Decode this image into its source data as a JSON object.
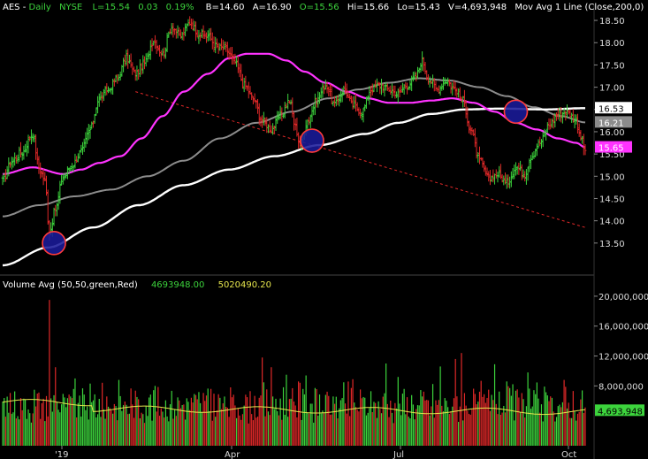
{
  "header": {
    "symbol": "AES",
    "period": "Daily",
    "exchange": "NYSE",
    "last": "L=15.54",
    "change": "0.03",
    "change_pct": "0.19%",
    "bid": "B=14.60",
    "ask": "A=16.90",
    "open": "O=15.56",
    "high": "Hi=15.66",
    "low": "Lo=15.43",
    "volume": "V=4,693,948",
    "study": "Mov Avg 1 Line (Close,200,0)"
  },
  "volume_header": {
    "title": "Volume Avg (50,50,green,Red)",
    "vol_value": "4693948.00",
    "avg_value": "5020490.20"
  },
  "colors": {
    "background": "#000000",
    "up": "#3cd33c",
    "down": "#e02828",
    "ma50": "#ff33ff",
    "ma100": "#8c8c8c",
    "ma200": "#ffffff",
    "trendline": "#e02828",
    "volume_avg": "#e6e64d",
    "circle_fill": "#1a1a9a",
    "circle_stroke": "#ff3b3b",
    "axis_text": "#dcdcdc",
    "header_green": "#3cd33c",
    "header_white": "#ffffff"
  },
  "chart_data": [
    {
      "type": "ohlc",
      "panel": "price",
      "x_ticks": [
        "'19",
        "Apr",
        "Jul",
        "Oct"
      ],
      "ylim": [
        13.0,
        18.7
      ],
      "y_ticks": [
        "18.50",
        "18.00",
        "17.50",
        "17.00",
        "16.50",
        "16.00",
        "15.50",
        "15.00",
        "14.50",
        "14.00",
        "13.50"
      ],
      "price_labels": [
        {
          "label": "16.53",
          "value": 16.53,
          "color": "#ffffff"
        },
        {
          "label": "16.21",
          "value": 16.21,
          "color": "#8c8c8c"
        },
        {
          "label": "15.65",
          "value": 15.65,
          "color": "#ff33ff"
        }
      ],
      "close_anchors": [
        {
          "i": 0,
          "v": 14.9
        },
        {
          "i": 6,
          "v": 15.35
        },
        {
          "i": 13,
          "v": 15.55
        },
        {
          "i": 20,
          "v": 15.95
        },
        {
          "i": 24,
          "v": 15.2
        },
        {
          "i": 28,
          "v": 14.9
        },
        {
          "i": 31,
          "v": 13.75
        },
        {
          "i": 35,
          "v": 14.25
        },
        {
          "i": 40,
          "v": 15.0
        },
        {
          "i": 46,
          "v": 15.25
        },
        {
          "i": 52,
          "v": 15.55
        },
        {
          "i": 58,
          "v": 16.05
        },
        {
          "i": 64,
          "v": 16.75
        },
        {
          "i": 70,
          "v": 16.95
        },
        {
          "i": 76,
          "v": 17.2
        },
        {
          "i": 82,
          "v": 17.65
        },
        {
          "i": 88,
          "v": 17.3
        },
        {
          "i": 94,
          "v": 17.55
        },
        {
          "i": 100,
          "v": 18.05
        },
        {
          "i": 106,
          "v": 17.75
        },
        {
          "i": 112,
          "v": 18.35
        },
        {
          "i": 118,
          "v": 18.15
        },
        {
          "i": 124,
          "v": 18.45
        },
        {
          "i": 130,
          "v": 18.2
        },
        {
          "i": 136,
          "v": 18.15
        },
        {
          "i": 142,
          "v": 17.9
        },
        {
          "i": 148,
          "v": 17.85
        },
        {
          "i": 154,
          "v": 17.55
        },
        {
          "i": 160,
          "v": 17.05
        },
        {
          "i": 166,
          "v": 16.75
        },
        {
          "i": 172,
          "v": 16.25
        },
        {
          "i": 178,
          "v": 16.05
        },
        {
          "i": 184,
          "v": 16.35
        },
        {
          "i": 190,
          "v": 16.7
        },
        {
          "i": 194,
          "v": 16.1
        },
        {
          "i": 197,
          "v": 15.7
        },
        {
          "i": 202,
          "v": 16.25
        },
        {
          "i": 208,
          "v": 16.7
        },
        {
          "i": 214,
          "v": 17.05
        },
        {
          "i": 220,
          "v": 16.6
        },
        {
          "i": 226,
          "v": 16.95
        },
        {
          "i": 232,
          "v": 16.6
        },
        {
          "i": 238,
          "v": 16.45
        },
        {
          "i": 244,
          "v": 16.95
        },
        {
          "i": 250,
          "v": 17.05
        },
        {
          "i": 256,
          "v": 16.95
        },
        {
          "i": 262,
          "v": 16.85
        },
        {
          "i": 268,
          "v": 17.05
        },
        {
          "i": 274,
          "v": 17.25
        },
        {
          "i": 278,
          "v": 17.6
        },
        {
          "i": 282,
          "v": 17.2
        },
        {
          "i": 288,
          "v": 16.95
        },
        {
          "i": 294,
          "v": 17.15
        },
        {
          "i": 300,
          "v": 16.95
        },
        {
          "i": 305,
          "v": 16.7
        },
        {
          "i": 310,
          "v": 16.05
        },
        {
          "i": 316,
          "v": 15.35
        },
        {
          "i": 322,
          "v": 14.95
        },
        {
          "i": 328,
          "v": 15.05
        },
        {
          "i": 334,
          "v": 14.85
        },
        {
          "i": 340,
          "v": 15.2
        },
        {
          "i": 346,
          "v": 15.05
        },
        {
          "i": 350,
          "v": 15.45
        },
        {
          "i": 356,
          "v": 15.75
        },
        {
          "i": 362,
          "v": 16.15
        },
        {
          "i": 368,
          "v": 16.4
        },
        {
          "i": 374,
          "v": 16.45
        },
        {
          "i": 380,
          "v": 16.25
        },
        {
          "i": 383,
          "v": 15.9
        },
        {
          "i": 386,
          "v": 15.55
        }
      ],
      "ma50_anchors": [
        {
          "i": 0,
          "v": 15.05
        },
        {
          "i": 20,
          "v": 15.2
        },
        {
          "i": 40,
          "v": 15.05
        },
        {
          "i": 52,
          "v": 15.15
        },
        {
          "i": 64,
          "v": 15.3
        },
        {
          "i": 78,
          "v": 15.45
        },
        {
          "i": 92,
          "v": 15.85
        },
        {
          "i": 106,
          "v": 16.35
        },
        {
          "i": 120,
          "v": 16.9
        },
        {
          "i": 136,
          "v": 17.3
        },
        {
          "i": 150,
          "v": 17.65
        },
        {
          "i": 162,
          "v": 17.75
        },
        {
          "i": 176,
          "v": 17.75
        },
        {
          "i": 188,
          "v": 17.6
        },
        {
          "i": 200,
          "v": 17.35
        },
        {
          "i": 214,
          "v": 17.1
        },
        {
          "i": 228,
          "v": 16.9
        },
        {
          "i": 242,
          "v": 16.75
        },
        {
          "i": 256,
          "v": 16.65
        },
        {
          "i": 270,
          "v": 16.65
        },
        {
          "i": 284,
          "v": 16.7
        },
        {
          "i": 298,
          "v": 16.75
        },
        {
          "i": 312,
          "v": 16.65
        },
        {
          "i": 326,
          "v": 16.45
        },
        {
          "i": 340,
          "v": 16.2
        },
        {
          "i": 354,
          "v": 16.05
        },
        {
          "i": 368,
          "v": 15.85
        },
        {
          "i": 380,
          "v": 15.75
        },
        {
          "i": 386,
          "v": 15.65
        }
      ],
      "ma100_anchors": [
        {
          "i": 0,
          "v": 14.1
        },
        {
          "i": 24,
          "v": 14.35
        },
        {
          "i": 48,
          "v": 14.55
        },
        {
          "i": 72,
          "v": 14.7
        },
        {
          "i": 96,
          "v": 15.0
        },
        {
          "i": 120,
          "v": 15.35
        },
        {
          "i": 144,
          "v": 15.85
        },
        {
          "i": 168,
          "v": 16.2
        },
        {
          "i": 192,
          "v": 16.45
        },
        {
          "i": 216,
          "v": 16.75
        },
        {
          "i": 236,
          "v": 16.95
        },
        {
          "i": 256,
          "v": 17.1
        },
        {
          "i": 276,
          "v": 17.2
        },
        {
          "i": 296,
          "v": 17.15
        },
        {
          "i": 316,
          "v": 17.0
        },
        {
          "i": 334,
          "v": 16.8
        },
        {
          "i": 352,
          "v": 16.55
        },
        {
          "i": 370,
          "v": 16.35
        },
        {
          "i": 386,
          "v": 16.21
        }
      ],
      "ma200_anchors": [
        {
          "i": 0,
          "v": 13.0
        },
        {
          "i": 30,
          "v": 13.4
        },
        {
          "i": 60,
          "v": 13.85
        },
        {
          "i": 90,
          "v": 14.35
        },
        {
          "i": 120,
          "v": 14.8
        },
        {
          "i": 150,
          "v": 15.15
        },
        {
          "i": 180,
          "v": 15.45
        },
        {
          "i": 210,
          "v": 15.7
        },
        {
          "i": 240,
          "v": 15.95
        },
        {
          "i": 262,
          "v": 16.2
        },
        {
          "i": 284,
          "v": 16.4
        },
        {
          "i": 306,
          "v": 16.5
        },
        {
          "i": 330,
          "v": 16.52
        },
        {
          "i": 360,
          "v": 16.5
        },
        {
          "i": 386,
          "v": 16.53
        }
      ],
      "trendline": {
        "from": {
          "i": 88,
          "v": 16.9
        },
        "to": {
          "i": 386,
          "v": 13.85
        }
      },
      "circles": [
        {
          "name": "circle-low-dec",
          "i": 34,
          "v": 13.5
        },
        {
          "name": "circle-support-may",
          "i": 205,
          "v": 15.8
        },
        {
          "name": "circle-resistance-sep",
          "i": 340,
          "v": 16.45
        }
      ],
      "bar_count": 387
    },
    {
      "type": "bar",
      "panel": "volume",
      "ylim": [
        0,
        22000000
      ],
      "y_ticks": [
        "20,000,000",
        "16,000,000",
        "12,000,000",
        "8,000,000"
      ],
      "last_volume_label": "4,693,948",
      "avg_line_value": 5020490,
      "base_volume_millions": [
        6.2,
        5.8,
        6.8,
        5.4,
        6.0,
        7.0,
        5.5,
        6.4
      ],
      "spikes": [
        {
          "i": 31,
          "v": 19.5
        },
        {
          "i": 35,
          "v": 10.5
        },
        {
          "i": 48,
          "v": 9.0
        },
        {
          "i": 77,
          "v": 8.8
        },
        {
          "i": 101,
          "v": 8.0
        },
        {
          "i": 138,
          "v": 7.6
        },
        {
          "i": 172,
          "v": 11.8
        },
        {
          "i": 178,
          "v": 10.5
        },
        {
          "i": 188,
          "v": 9.5
        },
        {
          "i": 196,
          "v": 8.6
        },
        {
          "i": 201,
          "v": 9.4
        },
        {
          "i": 232,
          "v": 8.9
        },
        {
          "i": 254,
          "v": 11.0
        },
        {
          "i": 262,
          "v": 9.2
        },
        {
          "i": 290,
          "v": 10.6
        },
        {
          "i": 300,
          "v": 11.6
        },
        {
          "i": 304,
          "v": 12.4
        },
        {
          "i": 326,
          "v": 10.9
        },
        {
          "i": 334,
          "v": 8.6
        },
        {
          "i": 348,
          "v": 9.8
        },
        {
          "i": 372,
          "v": 8.8
        }
      ]
    }
  ]
}
